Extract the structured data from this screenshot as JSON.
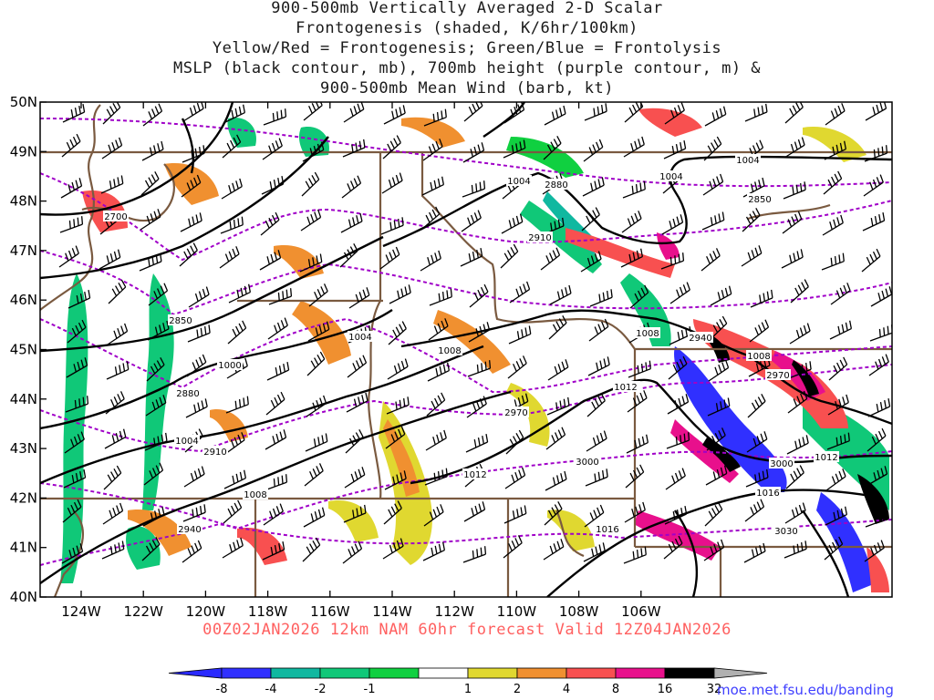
{
  "title_lines": [
    "900-500mb Vertically Averaged 2-D Scalar",
    "Frontogenesis (shaded, K/6hr/100km)",
    "Yellow/Red = Frontogenesis;  Green/Blue = Frontolysis",
    "MSLP (black contour, mb), 700mb height (purple contour, m) &",
    "900-500mb Mean Wind (barb, kt)"
  ],
  "subtitle": "00Z02JAN2026 12km NAM 60hr forecast Valid 12Z04JAN2026",
  "credit": "moe.met.fsu.edu/banding",
  "map": {
    "lat_labels": [
      "50N",
      "49N",
      "48N",
      "47N",
      "46N",
      "45N",
      "44N",
      "43N",
      "42N",
      "41N",
      "40N"
    ],
    "lon_labels": [
      "124W",
      "122W",
      "120W",
      "118W",
      "116W",
      "114W",
      "112W",
      "110W",
      "108W",
      "106W"
    ],
    "mslp_labels": [
      "1004",
      "1004",
      "1004",
      "1008",
      "1004",
      "1000",
      "1004",
      "1008",
      "1012",
      "1012",
      "1008",
      "1008",
      "1012",
      "1016",
      "1016",
      "1012"
    ],
    "height_labels": [
      "2700",
      "2880",
      "2910",
      "2850",
      "2880",
      "2910",
      "2940",
      "2970",
      "2970",
      "3000",
      "3000",
      "3030",
      "2940",
      "2850"
    ],
    "colors": {
      "mslp": "#000000",
      "height": "#a000c8",
      "border": "#7a5a40",
      "barb": "#000000"
    }
  },
  "colorbar": {
    "ticks": [
      "-8",
      "-4",
      "-2",
      "-1",
      "1",
      "2",
      "4",
      "8",
      "16",
      "32"
    ],
    "colors": [
      "#3030ff",
      "#10b8a0",
      "#10c878",
      "#10d040",
      "#ffffff",
      "#e0d830",
      "#f09030",
      "#f85050",
      "#e8108c",
      "#000000"
    ]
  }
}
